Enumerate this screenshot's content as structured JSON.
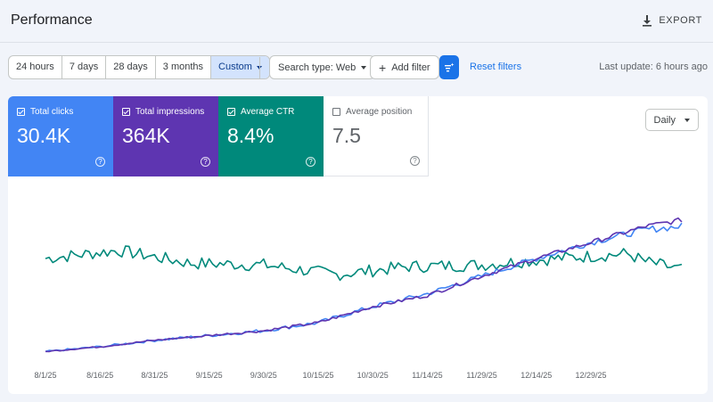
{
  "header": {
    "title": "Performance",
    "export_label": "EXPORT"
  },
  "toolbar": {
    "ranges": [
      "24 hours",
      "7 days",
      "28 days",
      "3 months",
      "Custom"
    ],
    "search_type": "Search type: Web",
    "add_filter": "Add filter",
    "reset_filters": "Reset filters",
    "last_update": "Last update: 6 hours ago"
  },
  "metrics": [
    {
      "label": "Total clicks",
      "value": "30.4K",
      "checked": true,
      "color": "#4285f4"
    },
    {
      "label": "Total impressions",
      "value": "364K",
      "checked": true,
      "color": "#5e35b1"
    },
    {
      "label": "Average CTR",
      "value": "8.4%",
      "checked": true,
      "color": "#00897b"
    },
    {
      "label": "Average position",
      "value": "7.5",
      "checked": false,
      "color": "#ffffff"
    }
  ],
  "granularity": "Daily",
  "chart_data": {
    "type": "line",
    "x_tick_labels": [
      "8/1/25",
      "8/16/25",
      "8/31/25",
      "9/15/25",
      "9/30/25",
      "10/15/25",
      "10/30/25",
      "11/14/25",
      "11/29/25",
      "12/14/25",
      "12/29/25"
    ],
    "y_axis_labels_shown": false,
    "grid": false,
    "series": [
      {
        "name": "Total clicks",
        "color": "#4285f4",
        "trend_relative": [
          [
            0,
            0.02
          ],
          [
            15,
            0.05
          ],
          [
            30,
            0.09
          ],
          [
            45,
            0.12
          ],
          [
            60,
            0.15
          ],
          [
            75,
            0.2
          ],
          [
            90,
            0.3
          ],
          [
            105,
            0.38
          ],
          [
            120,
            0.49
          ],
          [
            135,
            0.6
          ],
          [
            150,
            0.7
          ],
          [
            165,
            0.78
          ],
          [
            175,
            0.8
          ]
        ]
      },
      {
        "name": "Total impressions",
        "color": "#5e35b1",
        "trend_relative": [
          [
            0,
            0.02
          ],
          [
            15,
            0.05
          ],
          [
            30,
            0.09
          ],
          [
            45,
            0.12
          ],
          [
            60,
            0.15
          ],
          [
            75,
            0.2
          ],
          [
            90,
            0.3
          ],
          [
            105,
            0.37
          ],
          [
            120,
            0.49
          ],
          [
            135,
            0.6
          ],
          [
            150,
            0.7
          ],
          [
            165,
            0.8
          ],
          [
            175,
            0.84
          ]
        ]
      },
      {
        "name": "Average CTR",
        "color": "#00897b",
        "trend_relative": [
          [
            0,
            0.6
          ],
          [
            20,
            0.65
          ],
          [
            40,
            0.57
          ],
          [
            60,
            0.56
          ],
          [
            80,
            0.5
          ],
          [
            100,
            0.55
          ],
          [
            120,
            0.56
          ],
          [
            140,
            0.6
          ],
          [
            160,
            0.63
          ],
          [
            165,
            0.58
          ],
          [
            175,
            0.53
          ]
        ]
      }
    ]
  }
}
